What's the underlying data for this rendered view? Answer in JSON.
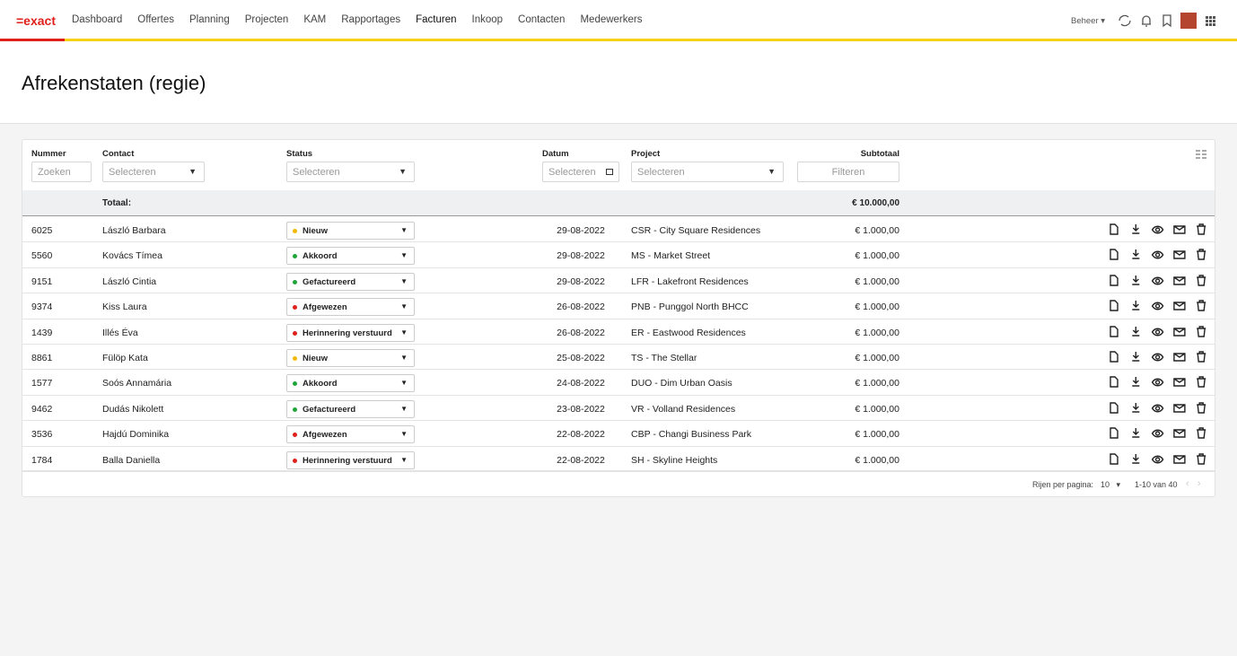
{
  "nav": {
    "logo": "=exact",
    "items": [
      "Dashboard",
      "Offertes",
      "Planning",
      "Projecten",
      "KAM",
      "Rapportages",
      "Facturen",
      "Inkoop",
      "Contacten",
      "Medewerkers"
    ],
    "active": "Facturen",
    "menu": "Beheer"
  },
  "page_title": "Afrekenstaten (regie)",
  "table": {
    "columns": [
      "Nummer",
      "Contact",
      "Status",
      "Datum",
      "Project",
      "Subtotaal"
    ],
    "filters": [
      "Zoeken",
      "Selecteren",
      "Selecteren",
      "Selecteren",
      "Selecteren",
      "Filteren"
    ],
    "total_label": "Totaal:",
    "total": "€ 10.000,00",
    "status_colors": {
      "Nieuw": "#f5b800",
      "Akkoord": "#1fa53a",
      "Gefactureerd": "#1fa53a",
      "Afgewezen": "#e0201b",
      "Herinnering verstuurd": "#e0201b"
    },
    "rows": [
      [
        "6025",
        "László Barbara",
        "Nieuw",
        "29-08-2022",
        "CSR - City Square Residences",
        "€ 1.000,00"
      ],
      [
        "5560",
        "Kovács Tímea",
        "Akkoord",
        "29-08-2022",
        "MS - Market Street",
        "€ 1.000,00"
      ],
      [
        "9151",
        "László Cintia",
        "Gefactureerd",
        "29-08-2022",
        "LFR - Lakefront Residences",
        "€ 1.000,00"
      ],
      [
        "9374",
        "Kiss Laura",
        "Afgewezen",
        "26-08-2022",
        "PNB - Punggol North BHCC",
        "€ 1.000,00"
      ],
      [
        "1439",
        "Illés Éva",
        "Herinnering verstuurd",
        "26-08-2022",
        "ER - Eastwood Residences",
        "€ 1.000,00"
      ],
      [
        "8861",
        "Fülöp Kata",
        "Nieuw",
        "25-08-2022",
        "TS - The Stellar",
        "€ 1.000,00"
      ],
      [
        "1577",
        "Soós Annamária",
        "Akkoord",
        "24-08-2022",
        "DUO - Dim Urban Oasis",
        "€ 1.000,00"
      ],
      [
        "9462",
        "Dudás Nikolett",
        "Gefactureerd",
        "23-08-2022",
        "VR - Volland Residences",
        "€ 1.000,00"
      ],
      [
        "3536",
        "Hajdú Dominika",
        "Afgewezen",
        "22-08-2022",
        "CBP - Changi Business Park",
        "€ 1.000,00"
      ],
      [
        "1784",
        "Balla Daniella",
        "Herinnering verstuurd",
        "22-08-2022",
        "SH - Skyline Heights",
        "€ 1.000,00"
      ]
    ]
  },
  "pagination": {
    "label": "Rijen per pagina:",
    "per_page": "10",
    "range": "1-10 van 40"
  }
}
